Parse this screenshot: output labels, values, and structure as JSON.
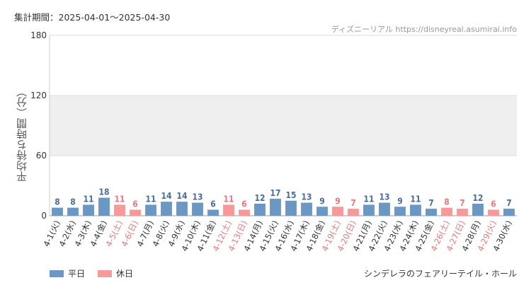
{
  "header": {
    "period": "集計期間：2025-04-01～2025-04-30",
    "source": "ディズニーリアル https://disneyreal.asumirai.info"
  },
  "footer": {
    "attraction": "シンデレラのフェアリーテイル・ホール"
  },
  "colors": {
    "weekday": "#6b97c4",
    "holiday": "#f7989b",
    "weekday_text": "#4a6e96",
    "holiday_text": "#e8787c",
    "band": "#efefef",
    "axis": "#cccccc"
  },
  "chart_data": {
    "type": "bar",
    "title": "",
    "ylabel": "平均待ち時間（分）",
    "xlabel": "",
    "ylim": [
      0,
      180
    ],
    "yticks": [
      0,
      60,
      120,
      180
    ],
    "band": [
      60,
      120
    ],
    "legend": [
      {
        "key": "weekday",
        "label": "平日"
      },
      {
        "key": "holiday",
        "label": "休日"
      }
    ],
    "legend_position": "bottom-left",
    "categories": [
      "4-1(火)",
      "4-2(水)",
      "4-3(木)",
      "4-4(金)",
      "4-5(土)",
      "4-6(日)",
      "4-7(月)",
      "4-8(火)",
      "4-9(水)",
      "4-10(木)",
      "4-11(金)",
      "4-12(土)",
      "4-13(日)",
      "4-14(月)",
      "4-15(火)",
      "4-16(水)",
      "4-17(木)",
      "4-18(金)",
      "4-19(土)",
      "4-20(日)",
      "4-21(月)",
      "4-22(火)",
      "4-23(水)",
      "4-24(木)",
      "4-25(金)",
      "4-26(土)",
      "4-27(日)",
      "4-28(月)",
      "4-29(火)",
      "4-30(水)"
    ],
    "values": [
      8,
      8,
      11,
      18,
      11,
      6,
      11,
      14,
      14,
      13,
      6,
      11,
      6,
      12,
      17,
      15,
      13,
      9,
      9,
      7,
      11,
      13,
      9,
      11,
      7,
      8,
      7,
      12,
      6,
      7
    ],
    "day_type": [
      "weekday",
      "weekday",
      "weekday",
      "weekday",
      "holiday",
      "holiday",
      "weekday",
      "weekday",
      "weekday",
      "weekday",
      "weekday",
      "holiday",
      "holiday",
      "weekday",
      "weekday",
      "weekday",
      "weekday",
      "weekday",
      "holiday",
      "holiday",
      "weekday",
      "weekday",
      "weekday",
      "weekday",
      "weekday",
      "holiday",
      "holiday",
      "weekday",
      "holiday",
      "weekday"
    ]
  }
}
